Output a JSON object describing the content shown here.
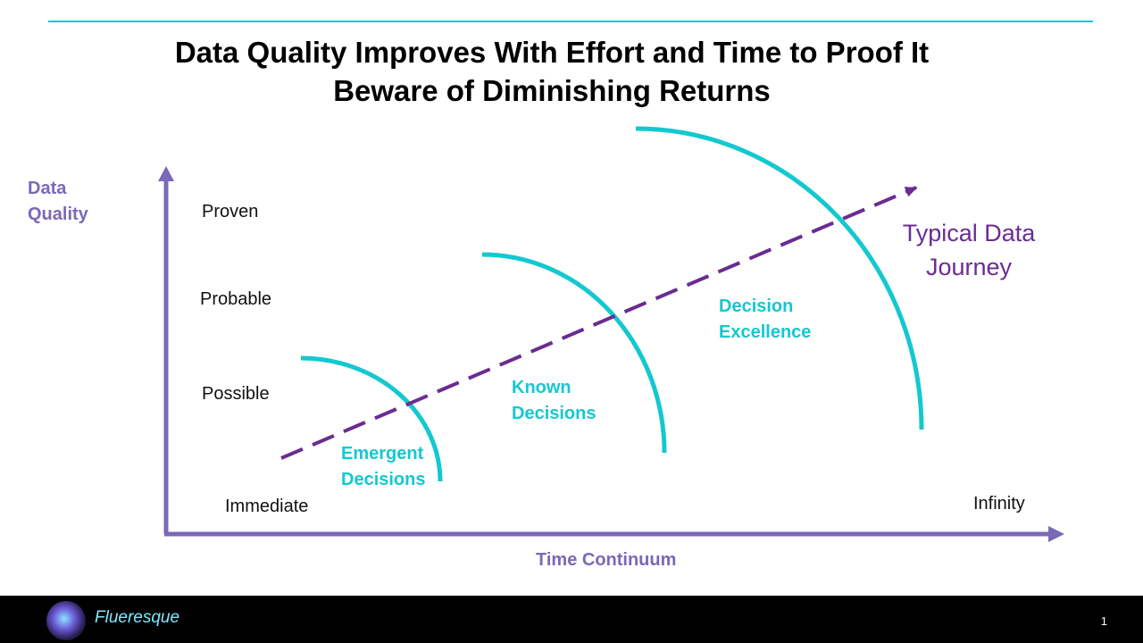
{
  "colors": {
    "accent": "#14C8D0",
    "axis": "#7B68B8",
    "journey": "#6A2C91",
    "footer": "#000000"
  },
  "title": {
    "line1": "Data Quality Improves With Effort and Time to Proof It",
    "line2": "Beware of Diminishing Returns"
  },
  "y_axis": {
    "title_line1": "Data",
    "title_line2": "Quality",
    "levels": [
      "Proven",
      "Probable",
      "Possible"
    ]
  },
  "x_axis": {
    "title": "Time Continuum",
    "start": "Immediate",
    "end": "Infinity"
  },
  "zones": [
    {
      "line1": "Emergent",
      "line2": "Decisions"
    },
    {
      "line1": "Known",
      "line2": "Decisions"
    },
    {
      "line1": "Decision",
      "line2": "Excellence"
    }
  ],
  "journey": {
    "line1": "Typical Data",
    "line2": "Journey"
  },
  "footer": {
    "brand": "Flueresque",
    "page_number": "1",
    "logo_icon": "swirl-logo-icon"
  }
}
